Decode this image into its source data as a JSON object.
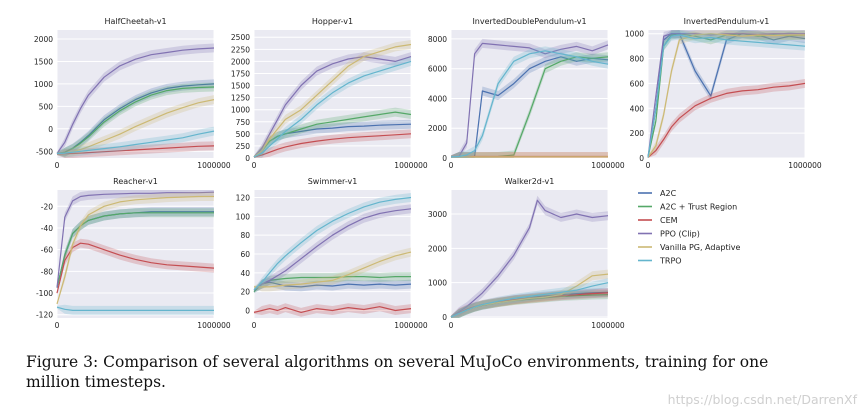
{
  "colors": {
    "A2C": "#4c72b0",
    "A2C + Trust Region": "#55a868",
    "CEM": "#c44e52",
    "PPO (Clip)": "#8172b2",
    "Vanilla PG, Adaptive": "#ccb974",
    "TRPO": "#64b5cd",
    "panel_bg": "#eaeaf2",
    "grid": "#ffffff"
  },
  "legend": {
    "placement": "bottom-right",
    "entries": [
      "A2C",
      "A2C + Trust Region",
      "CEM",
      "PPO (Clip)",
      "Vanilla PG, Adaptive",
      "TRPO"
    ]
  },
  "caption": "Figure 3: Comparison of several algorithms on several MuJoCo environments, training for one million timesteps.",
  "watermark": "https://blog.csdn.net/DarrenXf",
  "chart_data": [
    {
      "type": "line",
      "title": "HalfCheetah-v1",
      "x": [
        0,
        50000,
        100000,
        150000,
        200000,
        300000,
        400000,
        500000,
        600000,
        700000,
        800000,
        900000,
        1000000
      ],
      "xticks": [
        "0",
        "1000000"
      ],
      "yticks": [
        -500,
        0,
        500,
        1000,
        1500,
        2000
      ],
      "ylim": [
        -650,
        2200
      ],
      "series": [
        {
          "name": "A2C",
          "values": [
            -550,
            -520,
            -430,
            -300,
            -150,
            200,
            450,
            650,
            800,
            900,
            950,
            980,
            1000
          ]
        },
        {
          "name": "A2C + Trust Region",
          "values": [
            -550,
            -520,
            -440,
            -320,
            -180,
            150,
            400,
            600,
            750,
            850,
            900,
            920,
            930
          ]
        },
        {
          "name": "CEM",
          "values": [
            -560,
            -555,
            -550,
            -540,
            -530,
            -510,
            -490,
            -470,
            -450,
            -430,
            -410,
            -390,
            -380
          ]
        },
        {
          "name": "PPO (Clip)",
          "values": [
            -550,
            -300,
            100,
            450,
            750,
            1150,
            1400,
            1550,
            1650,
            1700,
            1750,
            1780,
            1800
          ]
        },
        {
          "name": "Vanilla PG, Adaptive",
          "values": [
            -550,
            -540,
            -510,
            -460,
            -400,
            -260,
            -120,
            50,
            200,
            350,
            470,
            580,
            650
          ]
        },
        {
          "name": "TRPO",
          "values": [
            -550,
            -540,
            -520,
            -500,
            -480,
            -440,
            -400,
            -350,
            -300,
            -250,
            -200,
            -120,
            -50
          ]
        }
      ]
    },
    {
      "type": "line",
      "title": "Hopper-v1",
      "x": [
        0,
        50000,
        100000,
        150000,
        200000,
        300000,
        400000,
        500000,
        600000,
        700000,
        800000,
        900000,
        1000000
      ],
      "xticks": [
        "0",
        "1000000"
      ],
      "yticks": [
        0,
        250,
        500,
        750,
        1000,
        1250,
        1500,
        1750,
        2000,
        2250,
        2500
      ],
      "ylim": [
        0,
        2650
      ],
      "series": [
        {
          "name": "A2C",
          "values": [
            20,
            150,
            350,
            450,
            500,
            550,
            600,
            620,
            650,
            660,
            680,
            690,
            700
          ]
        },
        {
          "name": "A2C + Trust Region",
          "values": [
            20,
            150,
            350,
            450,
            500,
            600,
            700,
            750,
            800,
            850,
            900,
            950,
            900
          ]
        },
        {
          "name": "CEM",
          "values": [
            20,
            60,
            120,
            180,
            230,
            300,
            350,
            390,
            420,
            440,
            460,
            480,
            500
          ]
        },
        {
          "name": "PPO (Clip)",
          "values": [
            20,
            200,
            500,
            800,
            1100,
            1500,
            1800,
            1950,
            2050,
            2100,
            2050,
            2000,
            2100
          ]
        },
        {
          "name": "Vanilla PG, Adaptive",
          "values": [
            20,
            150,
            400,
            600,
            800,
            1000,
            1300,
            1600,
            1900,
            2100,
            2200,
            2300,
            2350
          ]
        },
        {
          "name": "TRPO",
          "values": [
            20,
            100,
            250,
            400,
            550,
            800,
            1100,
            1350,
            1550,
            1700,
            1800,
            1900,
            2000
          ]
        }
      ]
    },
    {
      "type": "line",
      "title": "InvertedDoublePendulum-v1",
      "x": [
        0,
        50000,
        100000,
        150000,
        200000,
        300000,
        400000,
        500000,
        600000,
        700000,
        800000,
        900000,
        1000000
      ],
      "xticks": [
        "0",
        "1000000"
      ],
      "yticks": [
        0,
        2000,
        4000,
        6000,
        8000
      ],
      "ylim": [
        0,
        8600
      ],
      "series": [
        {
          "name": "A2C",
          "values": [
            80,
            80,
            90,
            100,
            4500,
            4200,
            5000,
            6000,
            6500,
            6800,
            6500,
            6700,
            6600
          ]
        },
        {
          "name": "A2C + Trust Region",
          "values": [
            80,
            80,
            80,
            80,
            80,
            100,
            200,
            3000,
            6000,
            6500,
            6800,
            6700,
            6800
          ]
        },
        {
          "name": "CEM",
          "values": [
            100,
            100,
            100,
            100,
            100,
            100,
            100,
            100,
            100,
            100,
            100,
            100,
            100
          ]
        },
        {
          "name": "PPO (Clip)",
          "values": [
            80,
            100,
            1000,
            7000,
            7700,
            7600,
            7500,
            7400,
            7000,
            7300,
            7500,
            7200,
            7600
          ]
        },
        {
          "name": "Vanilla PG, Adaptive",
          "values": [
            80,
            80,
            80,
            80,
            80,
            80,
            80,
            80,
            80,
            80,
            80,
            80,
            80
          ]
        },
        {
          "name": "TRPO",
          "values": [
            80,
            100,
            200,
            500,
            1500,
            5000,
            6500,
            7000,
            7200,
            7000,
            6800,
            6500,
            6300
          ]
        }
      ]
    },
    {
      "type": "line",
      "title": "InvertedPendulum-v1",
      "x": [
        0,
        50000,
        100000,
        150000,
        200000,
        300000,
        400000,
        500000,
        600000,
        700000,
        800000,
        900000,
        1000000
      ],
      "xticks": [
        "0",
        "1000000"
      ],
      "yticks": [
        0,
        200,
        400,
        600,
        800,
        1000
      ],
      "ylim": [
        0,
        1030
      ],
      "series": [
        {
          "name": "A2C",
          "values": [
            5,
            400,
            950,
            1000,
            1000,
            700,
            500,
            950,
            1000,
            990,
            950,
            980,
            960
          ]
        },
        {
          "name": "A2C + Trust Region",
          "values": [
            5,
            300,
            900,
            990,
            1000,
            980,
            950,
            990,
            1000,
            980,
            990,
            985,
            990
          ]
        },
        {
          "name": "CEM",
          "values": [
            5,
            60,
            150,
            250,
            320,
            420,
            480,
            520,
            540,
            550,
            570,
            580,
            600
          ]
        },
        {
          "name": "PPO (Clip)",
          "values": [
            5,
            500,
            980,
            1000,
            1000,
            1000,
            990,
            1000,
            1000,
            995,
            1000,
            1000,
            1000
          ]
        },
        {
          "name": "Vanilla PG, Adaptive",
          "values": [
            5,
            100,
            350,
            700,
            950,
            990,
            1000,
            990,
            980,
            990,
            985,
            990,
            990
          ]
        },
        {
          "name": "TRPO",
          "values": [
            5,
            400,
            900,
            980,
            990,
            960,
            970,
            950,
            940,
            930,
            920,
            910,
            900
          ]
        }
      ]
    },
    {
      "type": "line",
      "title": "Reacher-v1",
      "x": [
        0,
        50000,
        100000,
        150000,
        200000,
        300000,
        400000,
        500000,
        600000,
        700000,
        800000,
        900000,
        1000000
      ],
      "xticks": [
        "0",
        "1000000"
      ],
      "yticks": [
        -120,
        -100,
        -80,
        -60,
        -40,
        -20
      ],
      "ylim": [
        -123,
        -5
      ],
      "series": [
        {
          "name": "A2C",
          "values": [
            -95,
            -65,
            -45,
            -38,
            -33,
            -29,
            -27,
            -26,
            -25,
            -25,
            -25,
            -25,
            -25
          ]
        },
        {
          "name": "A2C + Trust Region",
          "values": [
            -95,
            -65,
            -45,
            -38,
            -33,
            -29,
            -27,
            -26,
            -26,
            -26,
            -26,
            -26,
            -26
          ]
        },
        {
          "name": "CEM",
          "values": [
            -100,
            -70,
            -58,
            -54,
            -55,
            -60,
            -65,
            -69,
            -72,
            -74,
            -75,
            -76,
            -77
          ]
        },
        {
          "name": "PPO (Clip)",
          "values": [
            -95,
            -30,
            -15,
            -11,
            -10,
            -9,
            -8.5,
            -8,
            -8,
            -7.5,
            -7.5,
            -7.5,
            -7
          ]
        },
        {
          "name": "Vanilla PG, Adaptive",
          "values": [
            -110,
            -85,
            -55,
            -38,
            -28,
            -20,
            -16,
            -14,
            -13,
            -12,
            -11.5,
            -11,
            -11
          ]
        },
        {
          "name": "TRPO",
          "values": [
            -113,
            -115,
            -116,
            -116,
            -116,
            -116,
            -116,
            -116,
            -116,
            -116,
            -116,
            -116,
            -116
          ]
        }
      ]
    },
    {
      "type": "line",
      "title": "Swimmer-v1",
      "x": [
        0,
        50000,
        100000,
        150000,
        200000,
        300000,
        400000,
        500000,
        600000,
        700000,
        800000,
        900000,
        1000000
      ],
      "xticks": [
        "0",
        "1000000"
      ],
      "yticks": [
        0,
        20,
        40,
        60,
        80,
        100,
        120
      ],
      "ylim": [
        -8,
        128
      ],
      "series": [
        {
          "name": "A2C",
          "values": [
            20,
            28,
            30,
            28,
            26,
            25,
            27,
            26,
            28,
            27,
            28,
            27,
            28
          ]
        },
        {
          "name": "A2C + Trust Region",
          "values": [
            20,
            28,
            32,
            33,
            34,
            35,
            35,
            35,
            36,
            36,
            35,
            36,
            36
          ]
        },
        {
          "name": "CEM",
          "values": [
            -2,
            0,
            2,
            0,
            3,
            -2,
            2,
            0,
            3,
            1,
            4,
            0,
            2
          ]
        },
        {
          "name": "PPO (Clip)",
          "values": [
            22,
            28,
            32,
            37,
            42,
            55,
            68,
            80,
            90,
            98,
            103,
            106,
            108
          ]
        },
        {
          "name": "Vanilla PG, Adaptive",
          "values": [
            25,
            25,
            25,
            26,
            27,
            28,
            30,
            32,
            38,
            45,
            52,
            58,
            62
          ]
        },
        {
          "name": "TRPO",
          "values": [
            22,
            30,
            40,
            50,
            58,
            72,
            85,
            95,
            103,
            110,
            115,
            118,
            120
          ]
        }
      ]
    },
    {
      "type": "line",
      "title": "Walker2d-v1",
      "x": [
        0,
        50000,
        100000,
        150000,
        200000,
        300000,
        400000,
        500000,
        550000,
        600000,
        700000,
        800000,
        900000,
        1000000
      ],
      "xticks": [
        "0",
        "1000000"
      ],
      "yticks": [
        0,
        1000,
        2000,
        3000
      ],
      "ylim": [
        -30,
        3700
      ],
      "series": [
        {
          "name": "A2C",
          "values": [
            0,
            100,
            200,
            280,
            340,
            420,
            500,
            560,
            590,
            610,
            650,
            680,
            700,
            720
          ]
        },
        {
          "name": "A2C + Trust Region",
          "values": [
            0,
            100,
            200,
            280,
            340,
            420,
            480,
            520,
            540,
            560,
            600,
            620,
            640,
            650
          ]
        },
        {
          "name": "CEM",
          "values": [
            0,
            120,
            220,
            300,
            360,
            440,
            500,
            540,
            560,
            580,
            620,
            650,
            680,
            700
          ]
        },
        {
          "name": "PPO (Clip)",
          "values": [
            0,
            150,
            300,
            500,
            700,
            1200,
            1800,
            2600,
            3400,
            3100,
            2900,
            3000,
            2900,
            2950
          ]
        },
        {
          "name": "Vanilla PG, Adaptive",
          "values": [
            0,
            100,
            200,
            280,
            350,
            420,
            480,
            540,
            560,
            580,
            650,
            900,
            1200,
            1250
          ]
        },
        {
          "name": "TRPO",
          "values": [
            0,
            100,
            200,
            290,
            360,
            460,
            540,
            600,
            630,
            660,
            720,
            780,
            900,
            1000
          ]
        }
      ]
    }
  ]
}
